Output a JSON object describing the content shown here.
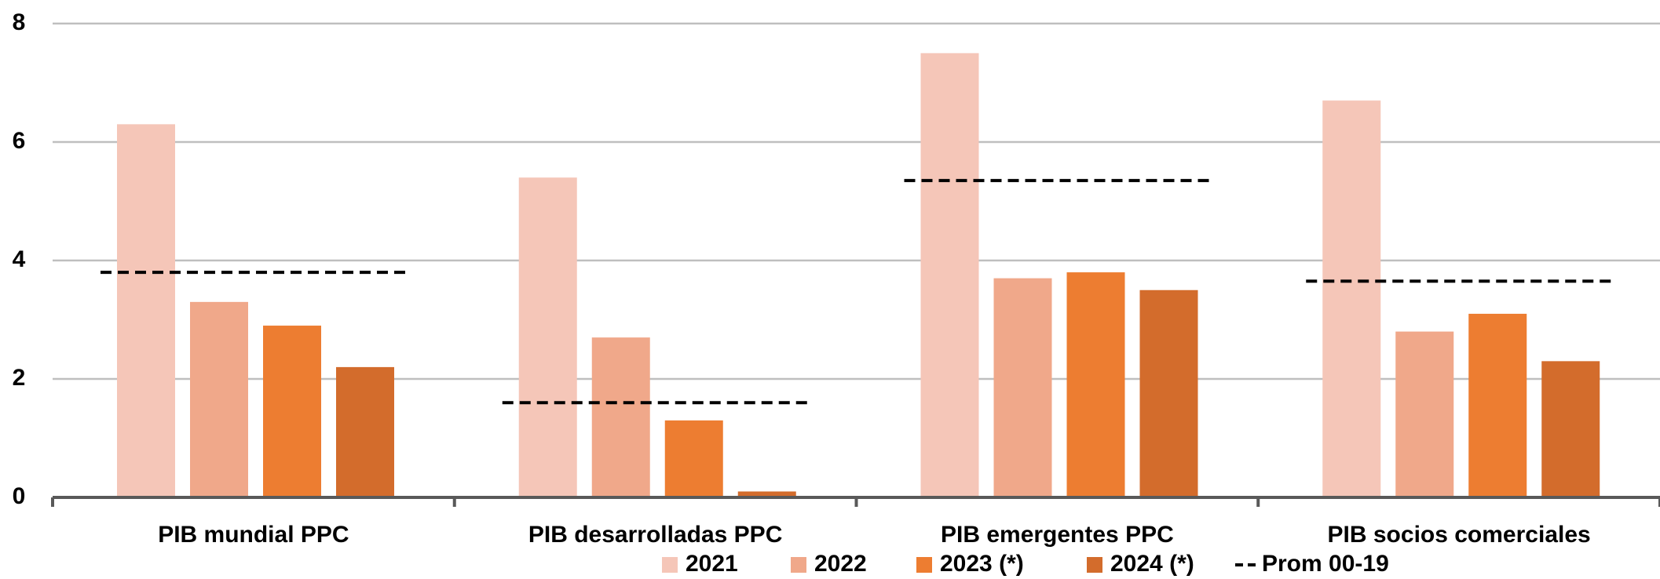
{
  "chart_data": {
    "type": "bar",
    "categories": [
      "PIB mundial PPC",
      "PIB desarrolladas PPC",
      "PIB emergentes PPC",
      "PIB socios comerciales"
    ],
    "series": [
      {
        "name": "2021",
        "color": "#f5c6b8",
        "values": [
          6.3,
          5.4,
          7.5,
          6.7
        ]
      },
      {
        "name": "2022",
        "color": "#f0a88a",
        "values": [
          3.3,
          2.7,
          3.7,
          2.8
        ]
      },
      {
        "name": "2023 (*)",
        "color": "#ed7d31",
        "values": [
          2.9,
          1.3,
          3.8,
          3.1
        ]
      },
      {
        "name": "2024 (*)",
        "color": "#d36c2c",
        "values": [
          2.2,
          0.1,
          3.5,
          2.3
        ]
      },
      {
        "name": "Prom 00-19",
        "color": "#000000",
        "kind": "dashed-line",
        "values": [
          3.8,
          1.6,
          5.35,
          3.65
        ]
      }
    ],
    "ylim": [
      0,
      8
    ],
    "yticks": [
      0,
      2,
      4,
      6,
      8
    ],
    "grid": true,
    "legend": "bottom"
  }
}
